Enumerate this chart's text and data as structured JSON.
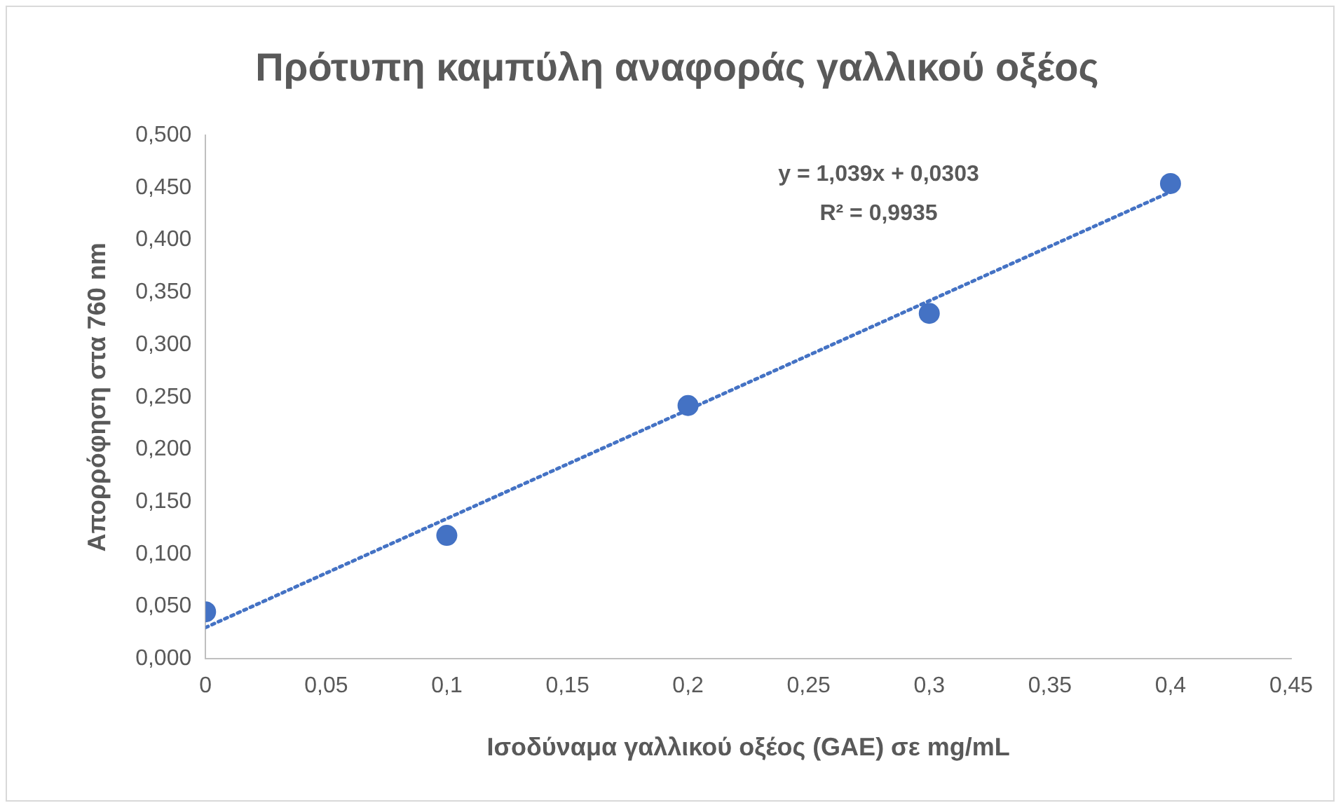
{
  "chart_data": {
    "type": "scatter",
    "title": "Πρότυπη καμπύλη αναφοράς γαλλικού οξέος",
    "xlabel": "Ισοδύναμα γαλλικού οξέος (GAE) σε mg/mL",
    "ylabel": "Απορρόφηση στα 760 nm",
    "x": [
      0,
      0.1,
      0.2,
      0.3,
      0.4
    ],
    "series": [
      {
        "color": "#4472c4",
        "values": [
          0.045,
          0.118,
          0.242,
          0.33,
          0.454
        ],
        "marker": "circle"
      },
      {
        "type": "line",
        "color": "#4472c4",
        "x": [
          0,
          0.4
        ],
        "values": [
          0.03,
          0.446
        ],
        "line_style": "dotted",
        "marker": "none"
      }
    ],
    "annotations": [
      "y = 1,039x + 0,0303",
      "R² = 0,9935"
    ],
    "xlim": [
      0,
      0.45
    ],
    "xticks": [
      {
        "value": 0,
        "label": "0"
      },
      {
        "value": 0.05,
        "label": "0,05"
      },
      {
        "value": 0.1,
        "label": "0,1"
      },
      {
        "value": 0.15,
        "label": "0,15"
      },
      {
        "value": 0.2,
        "label": "0,2"
      },
      {
        "value": 0.25,
        "label": "0,25"
      },
      {
        "value": 0.3,
        "label": "0,3"
      },
      {
        "value": 0.35,
        "label": "0,35"
      },
      {
        "value": 0.4,
        "label": "0,4"
      },
      {
        "value": 0.45,
        "label": "0,45"
      }
    ],
    "ylim": [
      0,
      0.5
    ],
    "yticks": [
      {
        "value": 0,
        "label": "0,000"
      },
      {
        "value": 0.05,
        "label": "0,050"
      },
      {
        "value": 0.1,
        "label": "0,100"
      },
      {
        "value": 0.15,
        "label": "0,150"
      },
      {
        "value": 0.2,
        "label": "0,200"
      },
      {
        "value": 0.25,
        "label": "0,250"
      },
      {
        "value": 0.3,
        "label": "0,300"
      },
      {
        "value": 0.35,
        "label": "0,350"
      },
      {
        "value": 0.4,
        "label": "0,400"
      },
      {
        "value": 0.45,
        "label": "0,450"
      },
      {
        "value": 0.5,
        "label": "0,500"
      }
    ],
    "grid": false,
    "legend": false
  }
}
